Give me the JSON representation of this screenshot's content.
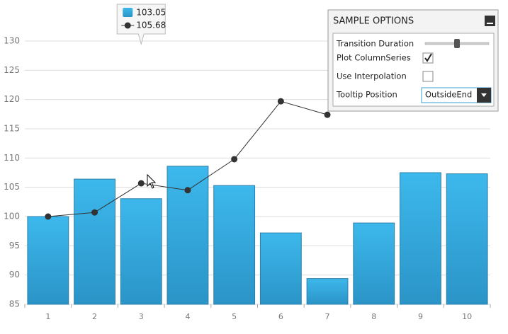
{
  "chart_data": {
    "type": "bar-line",
    "categories": [
      "1",
      "2",
      "3",
      "4",
      "5",
      "6",
      "7",
      "8",
      "9",
      "10"
    ],
    "series": [
      {
        "type": "bar",
        "color": "#35ade2",
        "values": [
          100,
          106.4,
          103.05,
          108.6,
          105.3,
          97.2,
          89.4,
          98.9,
          107.5,
          107.3
        ]
      },
      {
        "type": "line",
        "color": "#333333",
        "values": [
          100,
          100.7,
          105.68,
          104.5,
          109.8,
          119.7,
          117.4,
          null,
          null,
          null
        ]
      }
    ],
    "ylim": [
      85,
      130
    ],
    "yticks": [
      85,
      90,
      95,
      100,
      105,
      110,
      115,
      120,
      125,
      130
    ],
    "grid": true,
    "tooltip_index": 2
  },
  "options_panel": {
    "title": "SAMPLE OPTIONS",
    "rows": [
      {
        "label": "Transition Duration",
        "control": "slider"
      },
      {
        "label": "Plot ColumnSeries",
        "control": "checkbox",
        "checked": true
      },
      {
        "label": "Use Interpolation",
        "control": "checkbox",
        "checked": false
      },
      {
        "label": "Tooltip Position",
        "control": "dropdown",
        "selected": "OutsideEnd"
      }
    ]
  }
}
